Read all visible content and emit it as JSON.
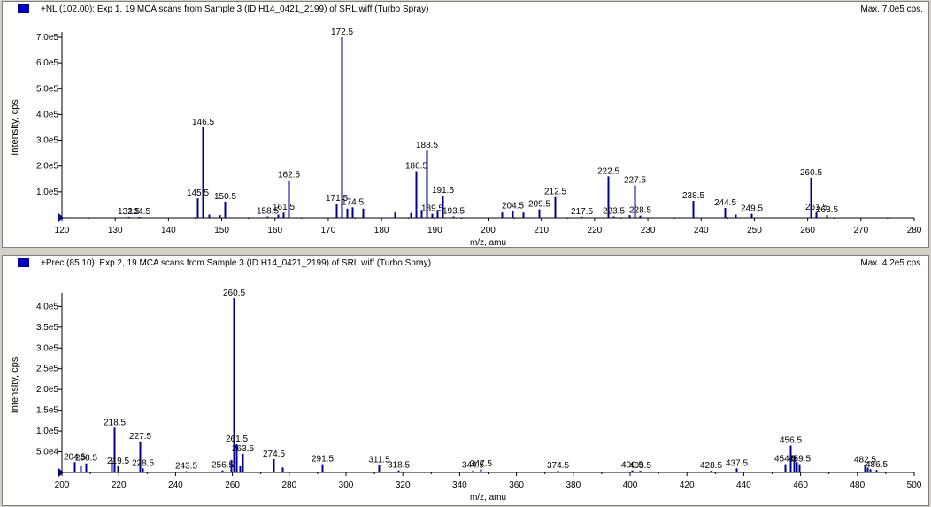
{
  "colors": {
    "peak": "#00008b",
    "axis": "#000000",
    "panel_bg": "#ffffff",
    "window_bg": "#d4d0c8"
  },
  "panels": [
    {
      "header_title": "+NL (102.00): Exp 1, 19 MCA scans from Sample 3 (ID H14_0421_2199) of SRL.wiff (Turbo Spray)",
      "header_max": "Max. 7.0e5 cps.",
      "xlabel": "m/z, amu",
      "ylabel": "Intensity, cps"
    },
    {
      "header_title": "+Prec (85.10): Exp 2, 19 MCA scans from Sample 3 (ID H14_0421_2199) of SRL.wiff (Turbo Spray)",
      "header_max": "Max. 4.2e5 cps.",
      "xlabel": "m/z, amu",
      "ylabel": "Intensity, cps"
    }
  ],
  "chart_data": [
    {
      "type": "bar",
      "title": "+NL (102.00): Exp 1, 19 MCA scans from Sample 3 (ID H14_0421_2199) of SRL.wiff (Turbo Spray)",
      "xlabel": "m/z, amu",
      "ylabel": "Intensity, cps",
      "xlim": [
        120,
        280
      ],
      "ylim": [
        0,
        700000
      ],
      "x_ticks": [
        120,
        130,
        140,
        150,
        160,
        170,
        180,
        190,
        200,
        210,
        220,
        230,
        240,
        250,
        260,
        270,
        280
      ],
      "y_ticks": [
        100000,
        200000,
        300000,
        400000,
        500000,
        600000,
        700000
      ],
      "y_tick_labels": [
        "1.0e5",
        "2.0e5",
        "3.0e5",
        "4.0e5",
        "5.0e5",
        "6.0e5",
        "7.0e5"
      ],
      "peaks": [
        {
          "mz": 132.5,
          "intensity": 3000,
          "label": "132.5"
        },
        {
          "mz": 134.5,
          "intensity": 3000,
          "label": "134.5"
        },
        {
          "mz": 145.5,
          "intensity": 75000,
          "label": "145.5"
        },
        {
          "mz": 146.5,
          "intensity": 350000,
          "label": "146.5"
        },
        {
          "mz": 147.5,
          "intensity": 12000
        },
        {
          "mz": 149.5,
          "intensity": 10000
        },
        {
          "mz": 150.5,
          "intensity": 62000,
          "label": "150.5"
        },
        {
          "mz": 158.5,
          "intensity": 5000,
          "label": "158.5"
        },
        {
          "mz": 160.5,
          "intensity": 12000
        },
        {
          "mz": 161.5,
          "intensity": 20000,
          "label": "161.5"
        },
        {
          "mz": 162.5,
          "intensity": 145000,
          "label": "162.5"
        },
        {
          "mz": 171.5,
          "intensity": 55000,
          "label": "171.5"
        },
        {
          "mz": 172.5,
          "intensity": 700000,
          "label": "172.5"
        },
        {
          "mz": 173.5,
          "intensity": 35000
        },
        {
          "mz": 174.5,
          "intensity": 40000,
          "label": "174.5"
        },
        {
          "mz": 176.5,
          "intensity": 35000
        },
        {
          "mz": 182.5,
          "intensity": 20000
        },
        {
          "mz": 185.5,
          "intensity": 18000
        },
        {
          "mz": 186.5,
          "intensity": 180000,
          "label": "186.5"
        },
        {
          "mz": 187.5,
          "intensity": 30000
        },
        {
          "mz": 188.5,
          "intensity": 260000,
          "label": "188.5"
        },
        {
          "mz": 189.5,
          "intensity": 15000,
          "label": "189.5"
        },
        {
          "mz": 190.5,
          "intensity": 30000
        },
        {
          "mz": 191.5,
          "intensity": 85000,
          "label": "191.5"
        },
        {
          "mz": 193.5,
          "intensity": 5000,
          "label": "193.5"
        },
        {
          "mz": 202.5,
          "intensity": 20000
        },
        {
          "mz": 204.5,
          "intensity": 25000,
          "label": "204.5"
        },
        {
          "mz": 206.5,
          "intensity": 20000
        },
        {
          "mz": 209.5,
          "intensity": 32000,
          "label": "209.5"
        },
        {
          "mz": 212.5,
          "intensity": 80000,
          "label": "212.5"
        },
        {
          "mz": 217.5,
          "intensity": 4000,
          "label": "217.5"
        },
        {
          "mz": 222.5,
          "intensity": 160000,
          "label": "222.5"
        },
        {
          "mz": 223.5,
          "intensity": 5000,
          "label": "223.5"
        },
        {
          "mz": 226.5,
          "intensity": 10000
        },
        {
          "mz": 227.5,
          "intensity": 125000,
          "label": "227.5"
        },
        {
          "mz": 228.5,
          "intensity": 8000,
          "label": "228.5"
        },
        {
          "mz": 238.5,
          "intensity": 65000,
          "label": "238.5"
        },
        {
          "mz": 244.5,
          "intensity": 38000,
          "label": "244.5"
        },
        {
          "mz": 246.5,
          "intensity": 12000
        },
        {
          "mz": 249.5,
          "intensity": 15000,
          "label": "249.5"
        },
        {
          "mz": 260.5,
          "intensity": 155000,
          "label": "260.5"
        },
        {
          "mz": 261.5,
          "intensity": 20000,
          "label": "261.5"
        },
        {
          "mz": 263.5,
          "intensity": 10000,
          "label": "263.5"
        }
      ]
    },
    {
      "type": "bar",
      "title": "+Prec (85.10): Exp 2, 19 MCA scans from Sample 3 (ID H14_0421_2199) of SRL.wiff (Turbo Spray)",
      "xlabel": "m/z, amu",
      "ylabel": "Intensity, cps",
      "xlim": [
        200,
        500
      ],
      "ylim": [
        0,
        420000
      ],
      "x_ticks": [
        200,
        220,
        240,
        260,
        280,
        300,
        320,
        340,
        360,
        380,
        400,
        420,
        440,
        460,
        480,
        500
      ],
      "y_ticks": [
        50000,
        100000,
        150000,
        200000,
        250000,
        300000,
        350000,
        400000
      ],
      "y_tick_labels": [
        "5.0e4",
        "1.0e5",
        "1.5e5",
        "2.0e5",
        "2.5e5",
        "3.0e5",
        "3.5e5",
        "4.0e5"
      ],
      "peaks": [
        {
          "mz": 204.5,
          "intensity": 25000,
          "label": "204.5"
        },
        {
          "mz": 206.5,
          "intensity": 15000
        },
        {
          "mz": 208.5,
          "intensity": 22000,
          "label": "208.5"
        },
        {
          "mz": 217.5,
          "intensity": 30000
        },
        {
          "mz": 218.5,
          "intensity": 108000,
          "label": "218.5"
        },
        {
          "mz": 219.5,
          "intensity": 15000,
          "label": "219.5"
        },
        {
          "mz": 227.5,
          "intensity": 75000,
          "label": "227.5"
        },
        {
          "mz": 228.5,
          "intensity": 10000,
          "label": "228.5"
        },
        {
          "mz": 243.5,
          "intensity": 3000,
          "label": "243.5"
        },
        {
          "mz": 256.5,
          "intensity": 5000,
          "label": "256.5"
        },
        {
          "mz": 259.5,
          "intensity": 30000
        },
        {
          "mz": 260.5,
          "intensity": 420000,
          "label": "260.5"
        },
        {
          "mz": 261.5,
          "intensity": 68000,
          "label": "261.5"
        },
        {
          "mz": 262.5,
          "intensity": 15000
        },
        {
          "mz": 263.5,
          "intensity": 45000,
          "label": "263.5"
        },
        {
          "mz": 274.5,
          "intensity": 32000,
          "label": "274.5"
        },
        {
          "mz": 277.5,
          "intensity": 12000
        },
        {
          "mz": 291.5,
          "intensity": 20000,
          "label": "291.5"
        },
        {
          "mz": 311.5,
          "intensity": 18000,
          "label": "311.5"
        },
        {
          "mz": 318.5,
          "intensity": 5000,
          "label": "318.5"
        },
        {
          "mz": 344.5,
          "intensity": 5000,
          "label": "344.5"
        },
        {
          "mz": 347.5,
          "intensity": 8000,
          "label": "347.5"
        },
        {
          "mz": 374.5,
          "intensity": 4000,
          "label": "374.5"
        },
        {
          "mz": 400.5,
          "intensity": 5000,
          "label": "400.5"
        },
        {
          "mz": 403.5,
          "intensity": 4000,
          "label": "403.5"
        },
        {
          "mz": 428.5,
          "intensity": 4000,
          "label": "428.5"
        },
        {
          "mz": 437.5,
          "intensity": 10000,
          "label": "437.5"
        },
        {
          "mz": 454.5,
          "intensity": 20000,
          "label": "454.5"
        },
        {
          "mz": 456.5,
          "intensity": 65000,
          "label": "456.5"
        },
        {
          "mz": 457.5,
          "intensity": 40000
        },
        {
          "mz": 458.5,
          "intensity": 25000
        },
        {
          "mz": 459.5,
          "intensity": 20000,
          "label": "459.5"
        },
        {
          "mz": 482.5,
          "intensity": 18000,
          "label": "482.5"
        },
        {
          "mz": 483.5,
          "intensity": 12000
        },
        {
          "mz": 484.5,
          "intensity": 8000
        },
        {
          "mz": 486.5,
          "intensity": 6000,
          "label": "486.5"
        }
      ]
    }
  ]
}
